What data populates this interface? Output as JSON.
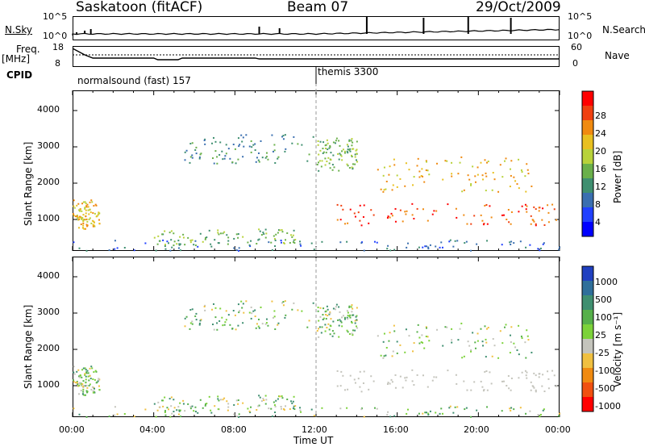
{
  "header": {
    "station": "Saskatoon (fitACF)",
    "beam": "Beam 07",
    "date": "29/Oct/2009"
  },
  "strip": {
    "nsky_label": "N.Sky",
    "nsky_ticks": [
      "10^5",
      "10^0"
    ],
    "nsearch_label": "N.Search",
    "nsearch_ticks": [
      "10^5",
      "10^0"
    ],
    "freq_label": "Freq.",
    "freq_unit": "[MHz]",
    "freq_ticks": [
      "18",
      "8"
    ],
    "nave_label": "Nave",
    "nave_ticks": [
      "60",
      "0"
    ],
    "cpid_label": "CPID",
    "cpid_1": "normalsound (fast) 157",
    "cpid_2": "themis 3300"
  },
  "colors": {
    "power_scale": [
      "#0000ff",
      "#2040ff",
      "#3a6fb0",
      "#3f8f70",
      "#6ab04a",
      "#b8d23a",
      "#e8c020",
      "#f08a10",
      "#f04010",
      "#ff0000"
    ],
    "velocity_scale": [
      "#2040c0",
      "#2f6f9a",
      "#3f8f70",
      "#56b04a",
      "#7cd23a",
      "#c4c4bc",
      "#f0c040",
      "#f08a10",
      "#f05010",
      "#ff0000"
    ]
  },
  "chart_data": [
    {
      "type": "heatmap",
      "name": "power",
      "ylabel": "Slant Range [km]",
      "colorbar_label": "Power [dB]",
      "colorbar_ticks": [
        "28",
        "24",
        "20",
        "16",
        "12",
        "8",
        "4"
      ],
      "ylim": [
        180,
        4600
      ],
      "yticks": [
        "4000",
        "3000",
        "2000",
        "1000"
      ],
      "xlim": [
        0,
        24
      ],
      "xticks": [
        "00:00",
        "04:00",
        "08:00",
        "12:00",
        "16:00",
        "20:00",
        "00:00"
      ]
    },
    {
      "type": "heatmap",
      "name": "velocity",
      "ylabel": "Slant Range [km]",
      "colorbar_label": "Velocity [m s⁻¹]",
      "colorbar_ticks": [
        "1000",
        "500",
        "100",
        "25",
        "-25",
        "-100",
        "-500",
        "-1000"
      ],
      "ylim": [
        180,
        4600
      ],
      "yticks": [
        "4000",
        "3000",
        "2000",
        "1000"
      ],
      "xlim": [
        0,
        24
      ],
      "xticks": [
        "00:00",
        "04:00",
        "08:00",
        "12:00",
        "16:00",
        "20:00",
        "00:00"
      ],
      "xlabel": "Time UT"
    }
  ]
}
